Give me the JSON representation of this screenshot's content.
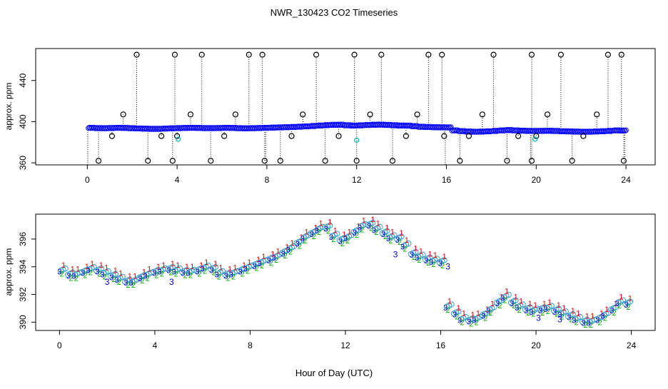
{
  "chart_data": [
    {
      "type": "scatter",
      "title": "NWR_130423  CO2 Timeseries",
      "xlabel": "",
      "ylabel": "approx. ppm",
      "xlim": [
        -2.3,
        25.3
      ],
      "ylim": [
        358,
        471
      ],
      "x_ticks": [
        0,
        4,
        8,
        12,
        16,
        20,
        24
      ],
      "y_ticks": [
        360,
        400,
        440
      ],
      "colors": {
        "outlier": "#000000",
        "baseline": "#0000ff",
        "lag_hint": "#00bbbb",
        "drop": "#000000"
      },
      "series": [
        {
          "name": "baseline",
          "x": [
            0.05,
            0.35,
            0.65,
            0.95,
            1.25,
            1.55,
            1.85,
            2.15,
            2.45,
            2.75,
            3.05,
            3.35,
            3.65,
            3.95,
            4.25,
            4.55,
            4.85,
            5.15,
            5.45,
            5.75,
            6.05,
            6.35,
            6.65,
            6.95,
            7.25,
            7.55,
            7.85,
            8.15,
            8.45,
            8.75,
            9.05,
            9.35,
            9.65,
            9.95,
            10.25,
            10.55,
            10.85,
            11.15,
            11.45,
            11.75,
            12.05,
            12.35,
            12.65,
            12.95,
            13.25,
            13.55,
            13.85,
            14.15,
            14.45,
            14.75,
            15.05,
            15.35,
            15.65,
            15.95,
            16.25,
            16.55,
            16.85,
            17.15,
            17.45,
            17.75,
            18.05,
            18.35,
            18.65,
            18.95,
            19.25,
            19.55,
            19.85,
            20.15,
            20.45,
            20.75,
            21.05,
            21.35,
            21.65,
            21.95,
            22.25,
            22.55,
            22.85,
            23.15,
            23.45,
            23.75
          ],
          "y": [
            394,
            393.7,
            393.6,
            393.8,
            394,
            393.9,
            393.6,
            393.4,
            393.2,
            393,
            393,
            393.3,
            393.5,
            393.7,
            393.9,
            394,
            393.9,
            393.7,
            393.7,
            393.8,
            394,
            393.9,
            393.6,
            393.5,
            393.6,
            393.8,
            394,
            394.2,
            394.4,
            394.6,
            394.8,
            395.1,
            395.4,
            395.8,
            396.2,
            396.6,
            396.9,
            397,
            396.5,
            396.2,
            396.4,
            396.7,
            397,
            397.1,
            396.8,
            396.5,
            396.2,
            396.1,
            395.6,
            395,
            394.8,
            394.6,
            394.5,
            394.4,
            391.5,
            390.8,
            390.4,
            390.2,
            390.3,
            390.6,
            391,
            391.5,
            391.8,
            391.5,
            391.2,
            391,
            390.9,
            391,
            391.1,
            390.9,
            390.7,
            390.5,
            390.3,
            390.2,
            390.2,
            390.4,
            390.7,
            391,
            391.5,
            391.4
          ]
        },
        {
          "name": "outliers_high",
          "x": [
            1.6,
            2.2,
            3.9,
            4.6,
            5.1,
            6.6,
            7.2,
            7.8,
            9.6,
            10.2,
            11.9,
            12.6,
            13.1,
            14.7,
            15.2,
            15.8,
            17.6,
            18.1,
            19.8,
            20.5,
            21.1,
            22.7,
            23.2,
            23.8
          ],
          "y": [
            407,
            465,
            465,
            407,
            465,
            407,
            465,
            465,
            407,
            465,
            465,
            407,
            465,
            407,
            465,
            465,
            407,
            465,
            465,
            407,
            465,
            407,
            465,
            465
          ]
        },
        {
          "name": "outliers_low",
          "x": [
            0.5,
            1.1,
            2.7,
            3.3,
            3.8,
            4.0,
            5.5,
            6.1,
            7.9,
            8.6,
            9.1,
            10.6,
            11.2,
            12.0,
            13.6,
            14.2,
            15.9,
            16.6,
            17.0,
            18.7,
            19.2,
            19.8,
            20.0,
            21.6,
            22.1,
            23.9
          ],
          "y": [
            362,
            386,
            362,
            386,
            362,
            386,
            362,
            386,
            362,
            362,
            386,
            362,
            386,
            362,
            362,
            386,
            386,
            362,
            386,
            362,
            386,
            362,
            386,
            362,
            386,
            362
          ]
        },
        {
          "name": "cyan_marks",
          "x": [
            4.05,
            12.0,
            19.95
          ],
          "y": [
            383,
            382,
            383
          ]
        }
      ]
    },
    {
      "type": "scatter",
      "title": "",
      "xlabel": "Hour of Day (UTC)",
      "ylabel": "approx. ppm",
      "xlim": [
        -1.0,
        25.0
      ],
      "ylim": [
        389.4,
        397.8
      ],
      "x_ticks": [
        0,
        4,
        8,
        12,
        16,
        20,
        24
      ],
      "y_ticks": [
        390,
        392,
        394,
        396
      ],
      "colors": {
        "s1": "#dd0000",
        "s2": "#00aa00",
        "s3": "#0000cc",
        "circle": "#3399cc"
      },
      "series": [
        {
          "name": "1",
          "x_offset": 0.12,
          "y_offset": 0.35
        },
        {
          "name": "2",
          "x_offset": 0.05,
          "y_offset": -0.3
        },
        {
          "name": "3",
          "x_offset": -0.05,
          "y_offset": -0.15
        },
        {
          "name": "callout_3",
          "x": [
            2.0,
            4.7,
            14.1,
            16.3,
            20.1,
            21.0
          ],
          "y": [
            392.9,
            392.9,
            394.9,
            394.0,
            390.3,
            390.2
          ]
        }
      ],
      "sample": {
        "x": [
          0.05,
          0.35,
          0.65,
          0.95,
          1.25,
          1.55,
          1.85,
          2.15,
          2.45,
          2.75,
          3.05,
          3.35,
          3.65,
          3.95,
          4.25,
          4.55,
          4.85,
          5.15,
          5.45,
          5.75,
          6.05,
          6.35,
          6.65,
          6.95,
          7.25,
          7.55,
          7.85,
          8.15,
          8.45,
          8.75,
          9.05,
          9.35,
          9.65,
          9.95,
          10.25,
          10.55,
          10.85,
          11.15,
          11.45,
          11.75,
          12.05,
          12.35,
          12.65,
          12.95,
          13.25,
          13.55,
          13.85,
          14.15,
          14.45,
          14.75,
          15.05,
          15.35,
          15.65,
          15.95,
          16.25,
          16.55,
          16.85,
          17.15,
          17.45,
          17.75,
          18.05,
          18.35,
          18.65,
          18.95,
          19.25,
          19.55,
          19.85,
          20.15,
          20.45,
          20.75,
          21.05,
          21.35,
          21.65,
          21.95,
          22.25,
          22.55,
          22.85,
          23.15,
          23.45,
          23.75
        ],
        "y": [
          393.8,
          393.5,
          393.5,
          393.7,
          393.9,
          393.8,
          393.6,
          393.4,
          393.2,
          393.0,
          393.0,
          393.3,
          393.5,
          393.7,
          393.8,
          393.9,
          393.8,
          393.7,
          393.7,
          393.8,
          394.0,
          393.9,
          393.6,
          393.5,
          393.6,
          393.8,
          394.0,
          394.2,
          394.4,
          394.6,
          394.8,
          395.1,
          395.4,
          395.8,
          396.2,
          396.5,
          396.8,
          396.9,
          396.3,
          396.0,
          396.2,
          396.6,
          397.0,
          397.1,
          396.8,
          396.5,
          396.2,
          396.1,
          395.6,
          395.0,
          394.8,
          394.6,
          394.5,
          394.4,
          391.2,
          390.7,
          390.3,
          390.2,
          390.3,
          390.6,
          391.0,
          391.5,
          391.9,
          391.5,
          391.2,
          391.0,
          390.9,
          391.0,
          391.1,
          390.9,
          390.7,
          390.5,
          390.3,
          390.1,
          390.1,
          390.3,
          390.6,
          391.0,
          391.5,
          391.4
        ]
      }
    }
  ]
}
